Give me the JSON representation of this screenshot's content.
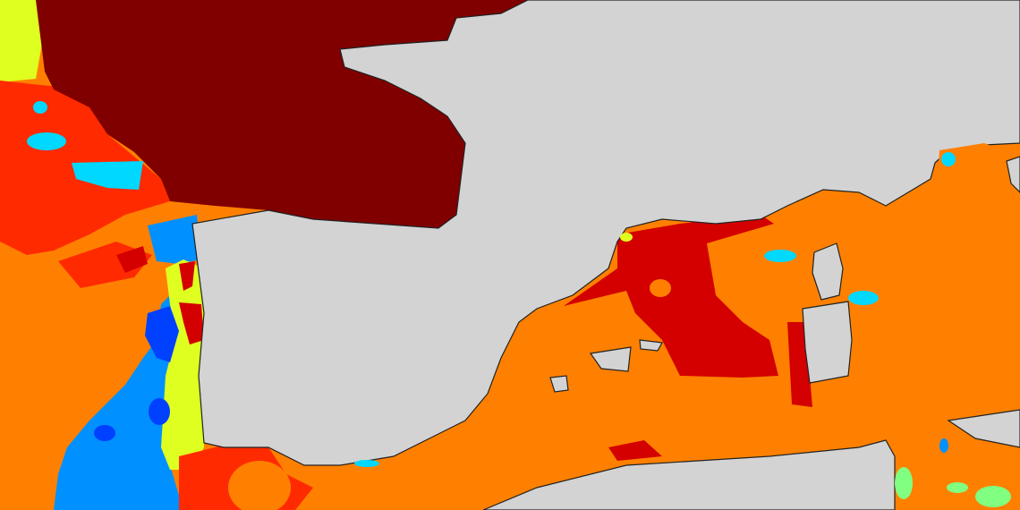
{
  "map": {
    "type": "sea-surface-field",
    "colors": {
      "land": "#d3d3d3",
      "coastline": "#222222",
      "dark_red": "#800000",
      "red": "#d40000",
      "orange_red": "#ff2a00",
      "orange": "#ff8000",
      "yellow": "#dfff20",
      "light_green": "#80ff80",
      "cyan": "#00d8ff",
      "blue": "#0090ff",
      "dark_blue": "#0040ff"
    }
  }
}
